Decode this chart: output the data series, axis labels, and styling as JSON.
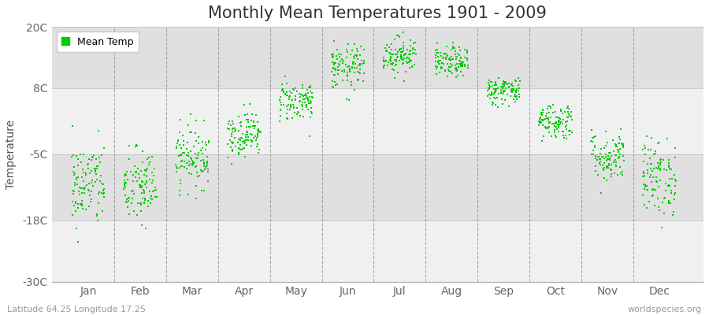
{
  "title": "Monthly Mean Temperatures 1901 - 2009",
  "ylabel": "Temperature",
  "yticks": [
    -30,
    -18,
    -5,
    8,
    20
  ],
  "ytick_labels": [
    "-30C",
    "-18C",
    "-5C",
    "8C",
    "20C"
  ],
  "ylim": [
    -30,
    20
  ],
  "xlim": [
    0.3,
    12.85
  ],
  "months": [
    "Jan",
    "Feb",
    "Mar",
    "Apr",
    "May",
    "Jun",
    "Jul",
    "Aug",
    "Sep",
    "Oct",
    "Nov",
    "Dec"
  ],
  "month_means": [
    -11.0,
    -11.5,
    -5.5,
    -1.0,
    5.5,
    12.0,
    14.5,
    13.0,
    7.5,
    1.5,
    -5.5,
    -9.5
  ],
  "month_stds": [
    4.2,
    3.8,
    3.0,
    2.2,
    2.0,
    2.2,
    1.8,
    1.5,
    1.4,
    1.8,
    2.5,
    3.8
  ],
  "n_years": 109,
  "dot_color": "#00CC00",
  "dot_size": 3,
  "background_color": "#E8E8E8",
  "band_color_light": "#F0F0F0",
  "band_color_dark": "#E0E0E0",
  "legend_label": "Mean Temp",
  "bottom_left": "Latitude 64.25 Longitude 17.25",
  "bottom_right": "worldspecies.org",
  "grid_color": "#777777",
  "title_fontsize": 15,
  "axis_fontsize": 10,
  "tick_fontsize": 10,
  "x_jitter": 0.32
}
